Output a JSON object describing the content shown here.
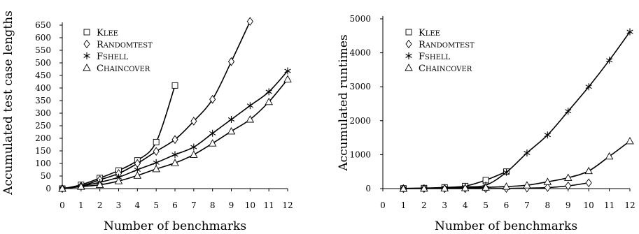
{
  "chart_data": [
    {
      "type": "line",
      "xlabel": "Number of benchmarks",
      "ylabel": "Accumulated test case lengths",
      "xlim": [
        0,
        12
      ],
      "ylim": [
        0,
        650
      ],
      "xticks": [
        0,
        1,
        2,
        3,
        4,
        5,
        6,
        7,
        8,
        9,
        10,
        11,
        12
      ],
      "yticks": [
        0,
        50,
        100,
        150,
        200,
        250,
        300,
        350,
        400,
        450,
        500,
        550,
        600,
        650
      ],
      "grid": false,
      "legend": "top-left",
      "series": [
        {
          "name": "KLEE",
          "marker": "square",
          "x": [
            0,
            1,
            2,
            3,
            4,
            5,
            6
          ],
          "y": [
            0,
            15,
            42,
            72,
            112,
            185,
            410
          ]
        },
        {
          "name": "RANDOMTEST",
          "marker": "diamond",
          "x": [
            0,
            1,
            2,
            3,
            4,
            5,
            6,
            7,
            8,
            9,
            10
          ],
          "y": [
            0,
            10,
            35,
            60,
            100,
            148,
            195,
            268,
            355,
            505,
            665
          ]
        },
        {
          "name": "FSHELL",
          "marker": "star",
          "x": [
            0,
            1,
            2,
            3,
            4,
            5,
            6,
            7,
            8,
            9,
            10,
            11,
            12
          ],
          "y": [
            0,
            10,
            25,
            45,
            75,
            103,
            135,
            165,
            220,
            275,
            330,
            385,
            468
          ]
        },
        {
          "name": "CHAINCOVER",
          "marker": "triangle",
          "x": [
            0,
            1,
            2,
            3,
            4,
            5,
            6,
            7,
            8,
            9,
            10,
            11,
            12
          ],
          "y": [
            0,
            8,
            15,
            30,
            52,
            78,
            102,
            135,
            180,
            228,
            275,
            345,
            435
          ]
        }
      ]
    },
    {
      "type": "line",
      "xlabel": "Number of benchmarks",
      "ylabel": "Accumulated runtimes",
      "xlim": [
        0,
        12
      ],
      "ylim": [
        0,
        5000
      ],
      "xticks": [
        0,
        1,
        2,
        3,
        4,
        5,
        6,
        7,
        8,
        9,
        10,
        11,
        12
      ],
      "yticks": [
        0,
        1000,
        2000,
        3000,
        4000,
        5000
      ],
      "grid": false,
      "legend": "top-left",
      "series": [
        {
          "name": "KLEE",
          "marker": "square",
          "x": [
            1,
            2,
            3,
            4,
            5,
            6
          ],
          "y": [
            5,
            15,
            35,
            75,
            250,
            500
          ]
        },
        {
          "name": "RANDOMTEST",
          "marker": "diamond",
          "x": [
            1,
            2,
            3,
            4,
            5,
            6,
            7,
            8,
            9,
            10
          ],
          "y": [
            0,
            0,
            0,
            0,
            0,
            5,
            15,
            30,
            80,
            170
          ]
        },
        {
          "name": "FSHELL",
          "marker": "star",
          "x": [
            1,
            2,
            3,
            4,
            5,
            6,
            7,
            8,
            9,
            10,
            11,
            12
          ],
          "y": [
            5,
            10,
            25,
            50,
            100,
            480,
            1050,
            1580,
            2280,
            3000,
            3780,
            4620
          ]
        },
        {
          "name": "CHAINCOVER",
          "marker": "triangle",
          "x": [
            1,
            2,
            3,
            4,
            5,
            6,
            7,
            8,
            9,
            10,
            11,
            12
          ],
          "y": [
            0,
            5,
            10,
            20,
            35,
            60,
            100,
            200,
            320,
            520,
            950,
            1400
          ]
        }
      ]
    }
  ]
}
